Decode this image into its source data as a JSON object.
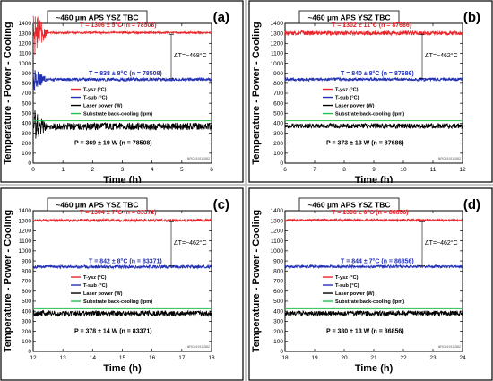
{
  "figure": {
    "divider_color": "#c8c8c8"
  },
  "common": {
    "panel_title": "~460 µm APS YSZ TBC",
    "ylabel": "Temperature - Power - Cooling",
    "xlabel": "Time (h)",
    "dt_label": "ΔT=~462°C",
    "watermark": "NRC#19111582",
    "legend": [
      {
        "label": "T-ysz (°C)",
        "color": "#e8262b"
      },
      {
        "label": "T-sub (°C)",
        "color": "#2230b4"
      },
      {
        "label": "Laser power (W)",
        "color": "#000000"
      },
      {
        "label": "Substrate back-cooling (lpm)",
        "color": "#22c24a"
      }
    ],
    "yticks": [
      0,
      100,
      200,
      300,
      400,
      500,
      600,
      700,
      800,
      900,
      1000,
      1100,
      1200,
      1300,
      1400
    ]
  },
  "chart_data": [
    {
      "type": "line",
      "panel": "(a)",
      "title": "~460 µm APS YSZ TBC",
      "xlabel": "Time (h)",
      "ylabel": "Temperature - Power - Cooling",
      "xlim": [
        0,
        6
      ],
      "ylim": [
        0,
        1400
      ],
      "xticks": [
        0,
        1,
        2,
        3,
        4,
        5,
        6
      ],
      "dt_label": "ΔT=~468°C",
      "annotations": {
        "t_ysz": "T = 1306 ± 5°C (n = 78508)",
        "t_sub": "T = 838 ± 8°C (n = 78508)",
        "power": "P = 369 ± 19 W (n = 78508)"
      },
      "series": [
        {
          "name": "T-ysz (°C)",
          "color": "#e8262b",
          "mean": 1306,
          "noise": 5
        },
        {
          "name": "T-sub (°C)",
          "color": "#2230b4",
          "mean": 838,
          "noise": 8
        },
        {
          "name": "Laser power (W)",
          "color": "#000000",
          "mean": 369,
          "noise": 19
        },
        {
          "name": "Substrate back-cooling (lpm)",
          "color": "#22c24a",
          "mean": 425,
          "noise": 0
        }
      ]
    },
    {
      "type": "line",
      "panel": "(b)",
      "title": "~460 µm APS YSZ TBC",
      "xlabel": "Time (h)",
      "ylabel": "Temperature - Power - Cooling",
      "xlim": [
        6,
        12
      ],
      "ylim": [
        0,
        1400
      ],
      "xticks": [
        6,
        7,
        8,
        9,
        10,
        11,
        12
      ],
      "dt_label": "ΔT=~462°C",
      "annotations": {
        "t_ysz": "T = 1302 ± 11°C (n = 87686)",
        "t_sub": "T = 840 ± 8°C (n = 87686)",
        "power": "P = 373 ± 13 W (n = 87686)"
      },
      "series": [
        {
          "name": "T-ysz (°C)",
          "color": "#e8262b",
          "mean": 1302,
          "noise": 11
        },
        {
          "name": "T-sub (°C)",
          "color": "#2230b4",
          "mean": 840,
          "noise": 8
        },
        {
          "name": "Laser power (W)",
          "color": "#000000",
          "mean": 373,
          "noise": 13
        },
        {
          "name": "Substrate back-cooling (lpm)",
          "color": "#22c24a",
          "mean": 425,
          "noise": 0
        }
      ]
    },
    {
      "type": "line",
      "panel": "(c)",
      "title": "~460 µm APS YSZ TBC",
      "xlabel": "Time (h)",
      "ylabel": "Temperature - Power - Cooling",
      "xlim": [
        12,
        18
      ],
      "ylim": [
        0,
        1400
      ],
      "xticks": [
        12,
        13,
        14,
        15,
        16,
        17,
        18
      ],
      "dt_label": "ΔT=~462°C",
      "annotations": {
        "t_ysz": "T = 1304 ± 7°C (n = 83371)",
        "t_sub": "T = 842 ± 8°C (n = 83371)",
        "power": "P = 378 ± 14 W (n = 83371)"
      },
      "series": [
        {
          "name": "T-ysz (°C)",
          "color": "#e8262b",
          "mean": 1304,
          "noise": 7
        },
        {
          "name": "T-sub (°C)",
          "color": "#2230b4",
          "mean": 842,
          "noise": 8
        },
        {
          "name": "Laser power (W)",
          "color": "#000000",
          "mean": 378,
          "noise": 14
        },
        {
          "name": "Substrate back-cooling (lpm)",
          "color": "#22c24a",
          "mean": 425,
          "noise": 0
        }
      ]
    },
    {
      "type": "line",
      "panel": "(d)",
      "title": "~460 µm APS YSZ TBC",
      "xlabel": "Time (h)",
      "ylabel": "Temperature - Power - Cooling",
      "xlim": [
        18,
        24
      ],
      "ylim": [
        0,
        1400
      ],
      "xticks": [
        18,
        19,
        20,
        21,
        22,
        23,
        24
      ],
      "dt_label": "ΔT=~462°C",
      "annotations": {
        "t_ysz": "T = 1306 ± 6°C (n = 86856)",
        "t_sub": "T = 844 ± 7°C (n = 86856)",
        "power": "P = 380 ± 13 W (n = 86856)"
      },
      "series": [
        {
          "name": "T-ysz (°C)",
          "color": "#e8262b",
          "mean": 1306,
          "noise": 6
        },
        {
          "name": "T-sub (°C)",
          "color": "#2230b4",
          "mean": 844,
          "noise": 7
        },
        {
          "name": "Laser power (W)",
          "color": "#000000",
          "mean": 380,
          "noise": 13
        },
        {
          "name": "Substrate back-cooling (lpm)",
          "color": "#22c24a",
          "mean": 425,
          "noise": 0
        }
      ]
    }
  ]
}
